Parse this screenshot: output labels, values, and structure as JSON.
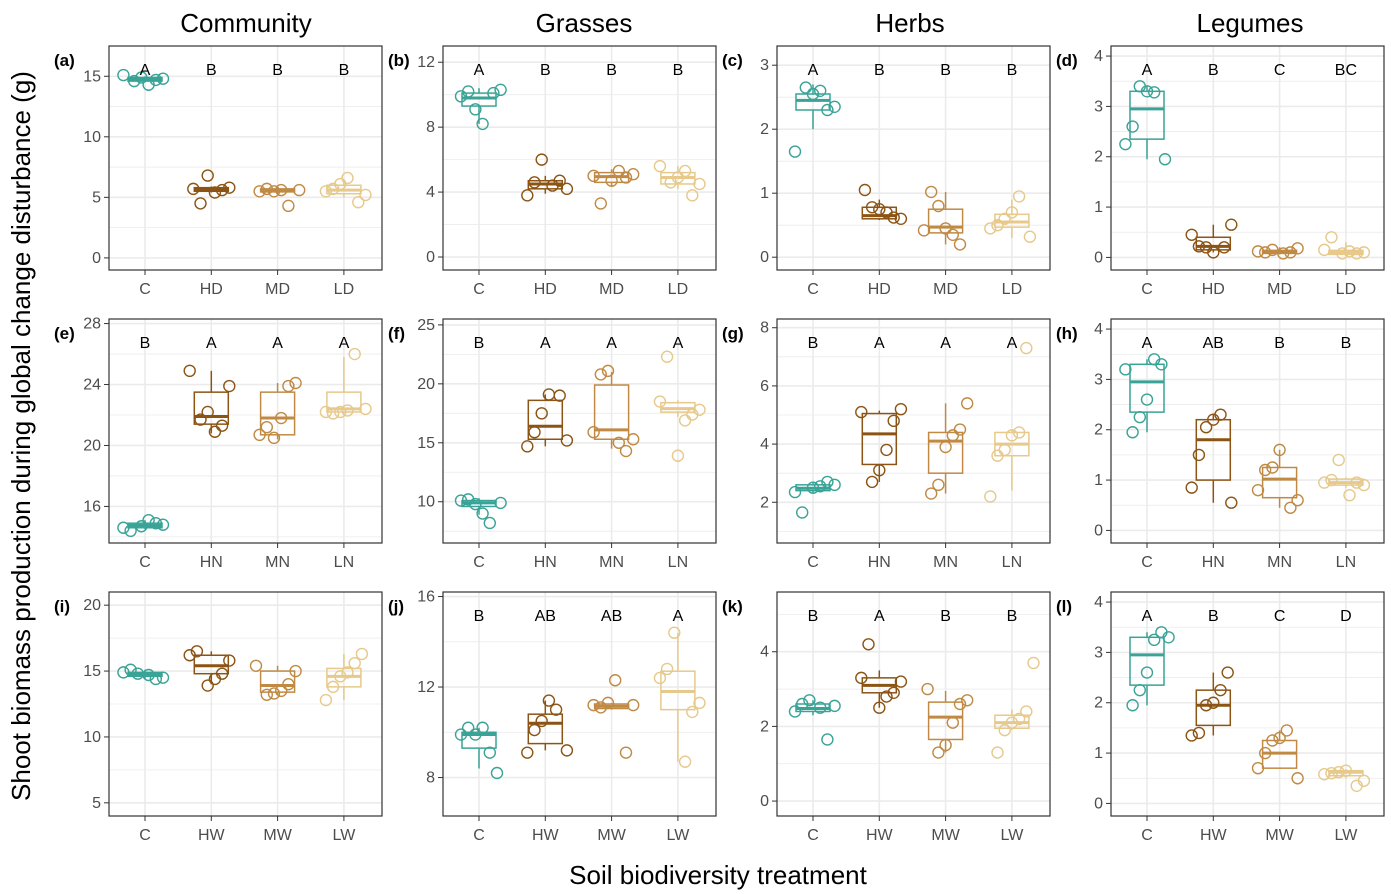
{
  "figure": {
    "column_titles": [
      "Community",
      "Grasses",
      "Herbs",
      "Legumes"
    ],
    "xlabel": "Soil biodiversity treatment",
    "ylabel": "Shoot biomass production during global change disturbance (g)"
  },
  "colors": {
    "C": "#3aa397",
    "H": "#8c5414",
    "M": "#c08a45",
    "L": "#e6c98b",
    "grid": "#ebebeb",
    "frame": "#333333"
  },
  "chart_data": [
    {
      "tag": "(a)",
      "type": "box",
      "treatments": [
        "C",
        "HD",
        "MD",
        "LD"
      ],
      "ylim": [
        -1,
        17.5
      ],
      "yticks": [
        0,
        5,
        10,
        15
      ],
      "letters": [
        "A",
        "B",
        "B",
        "B"
      ],
      "stats": [
        [
          14.5,
          14.6,
          14.75,
          14.9,
          15.0
        ],
        [
          5.4,
          5.5,
          5.65,
          5.8,
          5.9
        ],
        [
          5.3,
          5.45,
          5.6,
          5.7,
          5.8
        ],
        [
          5.0,
          5.3,
          5.6,
          6.0,
          6.4
        ]
      ],
      "points": [
        [
          15.1,
          14.8,
          14.7,
          14.3,
          14.9,
          14.6
        ],
        [
          5.8,
          5.6,
          5.4,
          6.8,
          4.5,
          5.7
        ],
        [
          4.3,
          5.6,
          5.5,
          5.7,
          5.5,
          5.6
        ],
        [
          6.6,
          6.1,
          5.7,
          5.5,
          5.2,
          4.6
        ]
      ]
    },
    {
      "tag": "(b)",
      "type": "box",
      "treatments": [
        "C",
        "HD",
        "MD",
        "LD"
      ],
      "ylim": [
        -0.8,
        13
      ],
      "yticks": [
        0,
        4,
        8,
        12
      ],
      "letters": [
        "A",
        "B",
        "B",
        "B"
      ],
      "stats": [
        [
          8.2,
          9.3,
          9.8,
          10.1,
          10.4
        ],
        [
          3.9,
          4.2,
          4.5,
          4.7,
          5.0
        ],
        [
          4.4,
          4.6,
          4.95,
          5.2,
          5.4
        ],
        [
          4.2,
          4.5,
          4.9,
          5.2,
          5.6
        ]
      ],
      "points": [
        [
          8.2,
          9.1,
          10.2,
          9.9,
          10.3,
          10.1
        ],
        [
          6.0,
          4.6,
          3.8,
          4.2,
          4.7,
          4.4
        ],
        [
          3.3,
          5.0,
          5.1,
          4.9,
          5.3,
          4.7
        ],
        [
          5.6,
          4.5,
          3.8,
          5.3,
          4.9,
          4.6
        ]
      ]
    },
    {
      "tag": "(c)",
      "type": "box",
      "treatments": [
        "C",
        "HD",
        "MD",
        "LD"
      ],
      "ylim": [
        -0.2,
        3.3
      ],
      "yticks": [
        0,
        1,
        2,
        3
      ],
      "letters": [
        "A",
        "B",
        "B",
        "B"
      ],
      "stats": [
        [
          2.0,
          2.3,
          2.45,
          2.55,
          2.7
        ],
        [
          0.58,
          0.6,
          0.65,
          0.78,
          0.9
        ],
        [
          0.2,
          0.38,
          0.47,
          0.75,
          1.02
        ],
        [
          0.3,
          0.47,
          0.55,
          0.67,
          0.9
        ]
      ],
      "points": [
        [
          1.65,
          2.35,
          2.3,
          2.6,
          2.55,
          2.65
        ],
        [
          0.6,
          0.62,
          0.7,
          0.75,
          0.78,
          1.05
        ],
        [
          0.2,
          0.35,
          0.45,
          0.8,
          1.02,
          0.42
        ],
        [
          0.95,
          0.7,
          0.6,
          0.5,
          0.45,
          0.32
        ]
      ]
    },
    {
      "tag": "(d)",
      "type": "box",
      "treatments": [
        "C",
        "HD",
        "MD",
        "LD"
      ],
      "ylim": [
        -0.25,
        4.2
      ],
      "yticks": [
        0,
        1,
        2,
        3,
        4
      ],
      "letters": [
        "A",
        "B",
        "C",
        "BC"
      ],
      "stats": [
        [
          1.95,
          2.35,
          2.95,
          3.3,
          3.4
        ],
        [
          0.1,
          0.15,
          0.22,
          0.4,
          0.65
        ],
        [
          0.06,
          0.08,
          0.1,
          0.14,
          0.2
        ],
        [
          0.03,
          0.06,
          0.1,
          0.14,
          0.3
        ]
      ],
      "points": [
        [
          3.28,
          3.3,
          3.4,
          2.6,
          2.25,
          1.95
        ],
        [
          0.1,
          0.2,
          0.22,
          0.45,
          0.65,
          0.2
        ],
        [
          0.15,
          0.1,
          0.12,
          0.18,
          0.1,
          0.08
        ],
        [
          0.4,
          0.15,
          0.1,
          0.08,
          0.12,
          0.08
        ]
      ]
    },
    {
      "tag": "(e)",
      "type": "box",
      "treatments": [
        "C",
        "HN",
        "MN",
        "LN"
      ],
      "ylim": [
        13.6,
        28.3
      ],
      "yticks": [
        16,
        20,
        24,
        28
      ],
      "letters": [
        "B",
        "A",
        "A",
        "A"
      ],
      "stats": [
        [
          14.5,
          14.6,
          14.75,
          14.9,
          15.1
        ],
        [
          20.8,
          21.4,
          21.9,
          23.5,
          24.9
        ],
        [
          20.4,
          20.7,
          21.8,
          23.5,
          24.1
        ],
        [
          22.1,
          22.2,
          22.4,
          23.5,
          25.8
        ]
      ],
      "points": [
        [
          14.4,
          14.6,
          14.8,
          14.9,
          15.1,
          14.7
        ],
        [
          24.9,
          23.9,
          21.3,
          20.9,
          22.2,
          21.7
        ],
        [
          24.1,
          23.9,
          21.8,
          20.5,
          21.2,
          20.7
        ],
        [
          26.0,
          22.3,
          22.2,
          22.1,
          22.2,
          22.4
        ]
      ]
    },
    {
      "tag": "(f)",
      "type": "box",
      "treatments": [
        "C",
        "HN",
        "MN",
        "LN"
      ],
      "ylim": [
        6.5,
        25.5
      ],
      "yticks": [
        10,
        15,
        20,
        25
      ],
      "letters": [
        "B",
        "A",
        "A",
        "A"
      ],
      "stats": [
        [
          8.9,
          9.6,
          9.9,
          10.1,
          10.3
        ],
        [
          14.7,
          15.3,
          16.4,
          18.6,
          19.1
        ],
        [
          14.5,
          15.3,
          16.1,
          19.9,
          21.0
        ],
        [
          17.2,
          17.6,
          17.9,
          18.4,
          18.6
        ]
      ],
      "points": [
        [
          8.2,
          9.0,
          9.8,
          10.2,
          10.1,
          9.9
        ],
        [
          19.1,
          17.5,
          15.9,
          14.7,
          15.2,
          19.0
        ],
        [
          21.1,
          20.8,
          15.9,
          15.3,
          14.3,
          15.0
        ],
        [
          22.3,
          18.5,
          17.8,
          17.4,
          16.9,
          13.9
        ]
      ]
    },
    {
      "tag": "(g)",
      "type": "box",
      "treatments": [
        "C",
        "HN",
        "MN",
        "LN"
      ],
      "ylim": [
        0.6,
        8.3
      ],
      "yticks": [
        2,
        4,
        6,
        8
      ],
      "letters": [
        "B",
        "A",
        "A",
        "A"
      ],
      "stats": [
        [
          2.3,
          2.4,
          2.48,
          2.6,
          2.7
        ],
        [
          2.7,
          3.3,
          4.35,
          5.05,
          5.15
        ],
        [
          2.3,
          3.0,
          4.1,
          4.4,
          5.4
        ],
        [
          2.4,
          3.6,
          4.0,
          4.4,
          4.5
        ]
      ],
      "points": [
        [
          1.65,
          2.35,
          2.6,
          2.7,
          2.55,
          2.5
        ],
        [
          5.1,
          5.2,
          4.8,
          3.8,
          3.1,
          2.7
        ],
        [
          5.4,
          4.5,
          4.3,
          3.9,
          2.6,
          2.3
        ],
        [
          7.3,
          4.4,
          4.3,
          3.8,
          3.6,
          2.2
        ]
      ]
    },
    {
      "tag": "(h)",
      "type": "box",
      "treatments": [
        "C",
        "HN",
        "MN",
        "LN"
      ],
      "ylim": [
        -0.25,
        4.2
      ],
      "yticks": [
        0,
        1,
        2,
        3,
        4
      ],
      "letters": [
        "A",
        "AB",
        "B",
        "B"
      ],
      "stats": [
        [
          1.95,
          2.35,
          2.95,
          3.3,
          3.4
        ],
        [
          0.55,
          1.0,
          1.8,
          2.2,
          2.3
        ],
        [
          0.45,
          0.65,
          1.02,
          1.25,
          1.6
        ],
        [
          0.85,
          0.9,
          0.95,
          1.02,
          1.05
        ]
      ],
      "points": [
        [
          3.3,
          3.4,
          2.6,
          2.25,
          1.95,
          3.2
        ],
        [
          2.3,
          2.2,
          2.05,
          1.5,
          0.85,
          0.55
        ],
        [
          1.6,
          1.25,
          1.2,
          0.8,
          0.6,
          0.45
        ],
        [
          1.4,
          1.0,
          0.95,
          0.9,
          0.95,
          0.7
        ]
      ]
    },
    {
      "tag": "(i)",
      "type": "box",
      "treatments": [
        "C",
        "HW",
        "MW",
        "LW"
      ],
      "ylim": [
        4,
        21
      ],
      "yticks": [
        5,
        10,
        15,
        20
      ],
      "letters": [
        "",
        "",
        "",
        ""
      ],
      "stats": [
        [
          14.4,
          14.6,
          14.75,
          14.9,
          15.1
        ],
        [
          14.0,
          14.8,
          15.4,
          16.2,
          16.5
        ],
        [
          13.2,
          13.4,
          13.9,
          15.0,
          15.4
        ],
        [
          12.8,
          13.8,
          14.6,
          15.2,
          16.3
        ]
      ],
      "points": [
        [
          14.8,
          15.1,
          14.9,
          14.5,
          14.4,
          14.7
        ],
        [
          16.5,
          16.2,
          15.8,
          14.8,
          14.4,
          13.9
        ],
        [
          15.4,
          15.0,
          14.0,
          13.5,
          13.3,
          13.2
        ],
        [
          16.3,
          15.6,
          14.9,
          14.6,
          13.8,
          12.8
        ]
      ]
    },
    {
      "tag": "(j)",
      "type": "box",
      "treatments": [
        "C",
        "HW",
        "MW",
        "LW"
      ],
      "ylim": [
        6.3,
        16.2
      ],
      "yticks": [
        8,
        12,
        16
      ],
      "letters": [
        "B",
        "AB",
        "AB",
        "A"
      ],
      "stats": [
        [
          8.4,
          9.3,
          9.9,
          10.0,
          10.2
        ],
        [
          9.2,
          9.5,
          10.4,
          10.8,
          11.4
        ],
        [
          11.0,
          11.05,
          11.15,
          11.25,
          11.3
        ],
        [
          8.7,
          11.0,
          11.8,
          12.7,
          14.4
        ]
      ],
      "points": [
        [
          8.2,
          9.1,
          10.2,
          9.9,
          10.2,
          9.9
        ],
        [
          11.0,
          11.4,
          10.5,
          10.1,
          9.1,
          9.2
        ],
        [
          12.3,
          11.3,
          11.1,
          11.2,
          11.2,
          9.1
        ],
        [
          14.4,
          12.8,
          12.4,
          11.3,
          10.9,
          8.7
        ]
      ]
    },
    {
      "tag": "(k)",
      "type": "box",
      "treatments": [
        "C",
        "HW",
        "MW",
        "LW"
      ],
      "ylim": [
        -0.4,
        5.6
      ],
      "yticks": [
        0,
        2,
        4
      ],
      "letters": [
        "B",
        "A",
        "B",
        "B"
      ],
      "stats": [
        [
          2.3,
          2.4,
          2.48,
          2.6,
          2.7
        ],
        [
          2.5,
          2.9,
          3.1,
          3.3,
          3.5
        ],
        [
          1.3,
          1.65,
          2.25,
          2.65,
          2.95
        ],
        [
          1.9,
          1.95,
          2.1,
          2.3,
          2.45
        ]
      ],
      "points": [
        [
          2.7,
          2.6,
          2.4,
          2.55,
          1.65,
          2.5
        ],
        [
          4.2,
          3.3,
          3.2,
          2.9,
          2.8,
          2.5
        ],
        [
          3.0,
          2.7,
          2.6,
          2.1,
          1.5,
          1.3
        ],
        [
          3.7,
          2.4,
          2.2,
          2.1,
          1.9,
          1.3
        ]
      ]
    },
    {
      "tag": "(l)",
      "type": "box",
      "treatments": [
        "C",
        "HW",
        "MW",
        "LW"
      ],
      "ylim": [
        -0.25,
        4.2
      ],
      "yticks": [
        0,
        1,
        2,
        3,
        4
      ],
      "letters": [
        "A",
        "B",
        "C",
        "D"
      ],
      "stats": [
        [
          1.95,
          2.35,
          2.95,
          3.3,
          3.4
        ],
        [
          1.35,
          1.55,
          1.95,
          2.25,
          2.6
        ],
        [
          0.7,
          0.7,
          1.0,
          1.25,
          1.45
        ],
        [
          0.5,
          0.55,
          0.62,
          0.65,
          0.68
        ]
      ],
      "points": [
        [
          3.3,
          3.4,
          3.25,
          2.6,
          2.25,
          1.95
        ],
        [
          2.6,
          2.25,
          2.0,
          1.95,
          1.4,
          1.35
        ],
        [
          1.45,
          1.3,
          1.25,
          1.0,
          0.7,
          0.5
        ],
        [
          0.65,
          0.62,
          0.6,
          0.58,
          0.45,
          0.35
        ]
      ]
    }
  ]
}
